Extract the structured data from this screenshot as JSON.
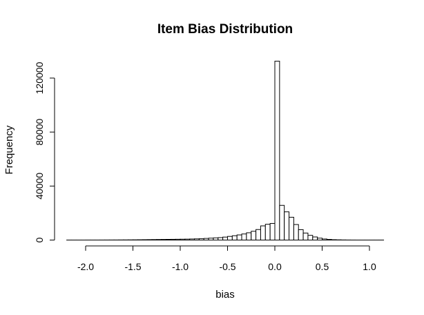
{
  "chart_data": {
    "type": "bar",
    "title": "Item Bias Distribution",
    "xlabel": "bias",
    "ylabel": "Frequency",
    "xlim": [
      -2.2,
      1.15
    ],
    "ylim": [
      0,
      132000
    ],
    "grid": false,
    "legend": "none",
    "x_ticks": [
      -2.0,
      -1.5,
      -1.0,
      -0.5,
      0.0,
      0.5,
      1.0
    ],
    "x_tick_labels": [
      "-2.0",
      "-1.5",
      "-1.0",
      "-0.5",
      "0.0",
      "0.5",
      "1.0"
    ],
    "y_ticks": [
      0,
      40000,
      80000,
      120000
    ],
    "y_tick_labels": [
      "0",
      "40000",
      "80000",
      "120000"
    ],
    "bin_width": 0.05,
    "bin_start": -2.2,
    "values": [
      10,
      10,
      10,
      10,
      20,
      20,
      20,
      30,
      40,
      50,
      60,
      80,
      100,
      130,
      160,
      200,
      250,
      300,
      350,
      400,
      450,
      500,
      550,
      600,
      650,
      700,
      800,
      900,
      1000,
      1200,
      1400,
      1600,
      1800,
      2200,
      2700,
      3200,
      3800,
      4500,
      5400,
      6500,
      7800,
      10500,
      11700,
      12300,
      132500,
      25700,
      20900,
      16900,
      11500,
      7700,
      5200,
      3500,
      2300,
      1400,
      800,
      450,
      250,
      150,
      80,
      40,
      20,
      10,
      10,
      10,
      10,
      10,
      10
    ]
  }
}
